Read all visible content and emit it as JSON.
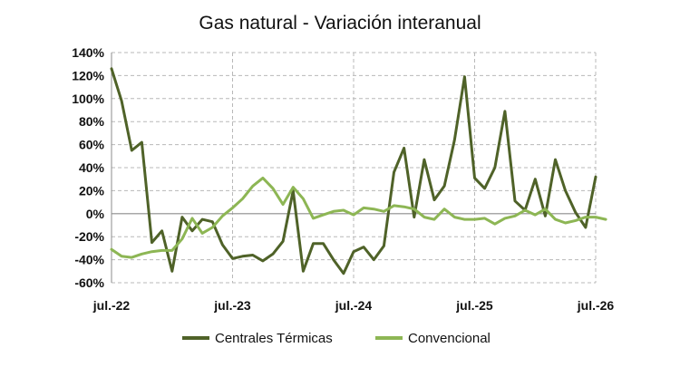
{
  "chart_data": {
    "type": "line",
    "title": "Gas natural - Variación interanual",
    "xlabel": "",
    "ylabel": "",
    "x_ticks": [
      "jul.-22",
      "jul.-23",
      "jul.-24",
      "jul.-25",
      "jul.-26"
    ],
    "ylim": [
      -60,
      140
    ],
    "y_ticks": [
      "-60%",
      "-40%",
      "-20%",
      "0%",
      "20%",
      "40%",
      "60%",
      "80%",
      "100%",
      "120%",
      "140%"
    ],
    "y_tick_values": [
      -60,
      -40,
      -20,
      0,
      20,
      40,
      60,
      80,
      100,
      120,
      140
    ],
    "grid": true,
    "legend_position": "bottom",
    "x_months_from": "jul.-22",
    "series": [
      {
        "name": "Centrales Térmicas",
        "color": "#4f6228",
        "values": [
          126,
          98,
          55,
          62,
          -25,
          -15,
          -50,
          -3,
          -15,
          -5,
          -7,
          -27,
          -39,
          -37,
          -36,
          -41,
          -35,
          -24,
          20,
          -50,
          -26,
          -26,
          -40,
          -52,
          -33,
          -29,
          -40,
          -28,
          36,
          57,
          -3,
          47,
          12,
          24,
          64,
          119,
          31,
          22,
          40,
          89,
          11,
          3,
          30,
          -2,
          47,
          20,
          1,
          -12,
          32
        ]
      },
      {
        "name": "Convencional",
        "color": "#8db654",
        "values": [
          -31,
          -37,
          -38,
          -35,
          -33,
          -32,
          -32,
          -22,
          -4,
          -17,
          -12,
          -2,
          5,
          13,
          24,
          31,
          22,
          8,
          23,
          13,
          -4,
          -1,
          2,
          3,
          -1,
          5,
          4,
          2,
          7,
          6,
          4,
          -3,
          -5,
          4,
          -3,
          -5,
          -5,
          -4,
          -9,
          -4,
          -2,
          3,
          -1,
          4,
          -5,
          -8,
          -6,
          -3,
          -3,
          -5
        ]
      }
    ]
  }
}
